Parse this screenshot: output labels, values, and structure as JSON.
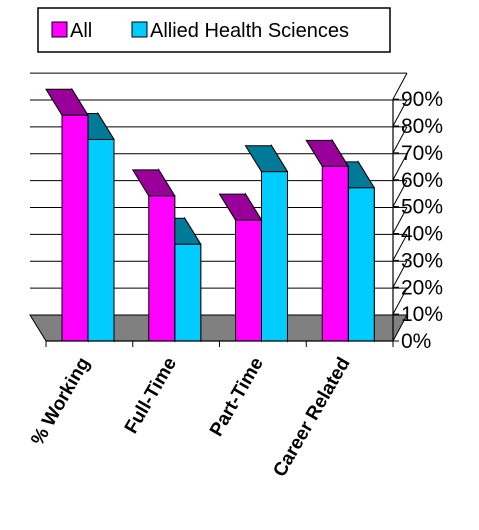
{
  "chart_data": {
    "type": "bar",
    "categories": [
      "% Working",
      "Full-Time",
      "Part-Time",
      "Career Related"
    ],
    "series": [
      {
        "name": "All",
        "values": [
          84,
          54,
          45,
          65
        ]
      },
      {
        "name": "Allied Health Sciences",
        "values": [
          75,
          36,
          63,
          57
        ]
      }
    ],
    "yticks": [
      "0%",
      "10%",
      "20%",
      "30%",
      "40%",
      "50%",
      "60%",
      "70%",
      "80%",
      "90%"
    ],
    "ylim": [
      0,
      90
    ],
    "grid": true,
    "three_d": true,
    "legend_position": "top",
    "title": "",
    "xlabel": "",
    "ylabel": ""
  },
  "colors": {
    "All": "#ff00ff",
    "Allied Health Sciences": "#00ccff",
    "floor": "#808080"
  }
}
